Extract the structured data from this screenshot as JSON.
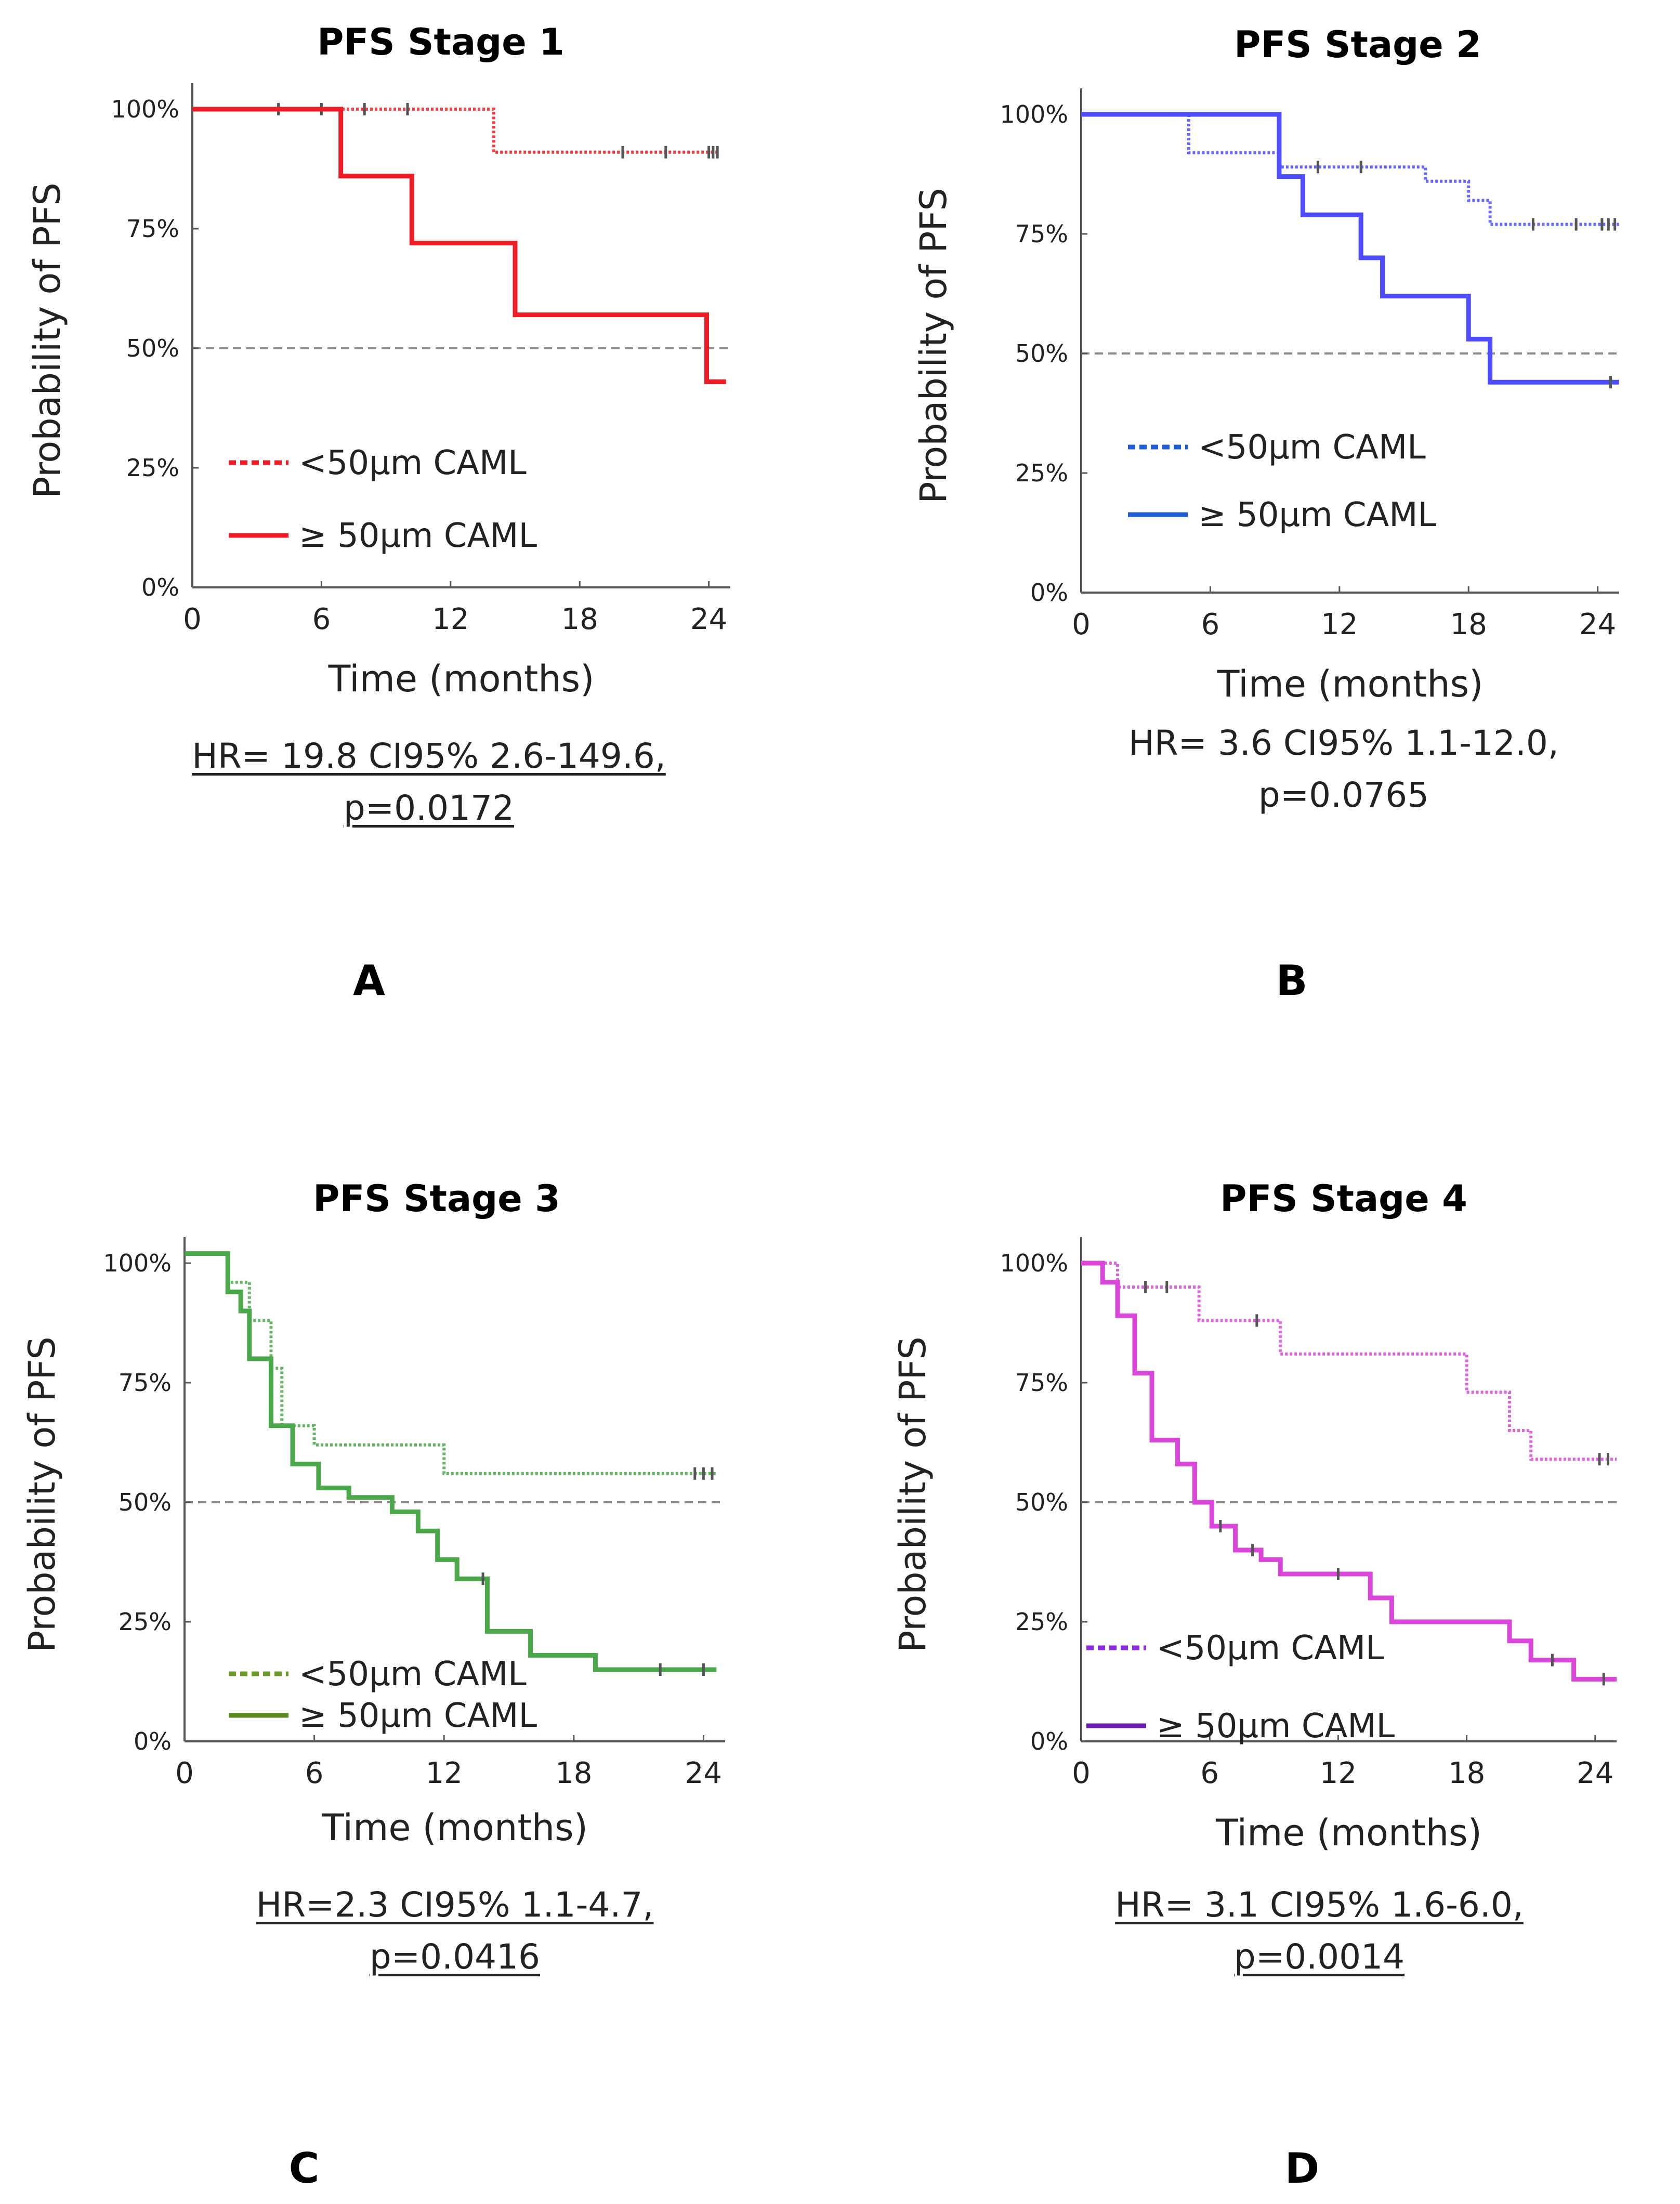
{
  "chart_data": [
    {
      "type": "line",
      "panel": "A",
      "title": "PFS Stage 1",
      "xlabel": "Time (months)",
      "ylabel": "Probability of PFS",
      "xlim": [
        0,
        25
      ],
      "ylim": [
        0,
        100
      ],
      "xticks": [
        "0",
        "6",
        "12",
        "18",
        "24"
      ],
      "yticks": [
        "0%",
        "25%",
        "50%",
        "75%",
        "100%"
      ],
      "median_line": 50,
      "color": "#ee1c25",
      "series": [
        {
          "name": "<50µm CAML",
          "style": "dotted",
          "steps": [
            [
              0,
              100
            ],
            [
              14,
              100
            ],
            [
              14,
              91
            ],
            [
              24.5,
              91
            ]
          ],
          "censors": [
            [
              4,
              100
            ],
            [
              6,
              100
            ],
            [
              8,
              100
            ],
            [
              10,
              100
            ],
            [
              20,
              91
            ],
            [
              22,
              91
            ],
            [
              24,
              91
            ],
            [
              24.2,
              91
            ],
            [
              24.4,
              91
            ]
          ]
        },
        {
          "name": "≥ 50µm CAML",
          "style": "solid",
          "steps": [
            [
              0,
              100
            ],
            [
              6.9,
              100
            ],
            [
              6.9,
              86
            ],
            [
              10.2,
              86
            ],
            [
              10.2,
              72
            ],
            [
              15,
              72
            ],
            [
              15,
              57
            ],
            [
              23.9,
              57
            ],
            [
              23.9,
              43
            ],
            [
              24.8,
              43
            ]
          ],
          "censors": []
        }
      ],
      "legend": [
        "<50µm CAML",
        "≥ 50µm CAML"
      ],
      "stats": [
        "HR= 19.8 CI95% 2.6-149.6,",
        "p=0.0172"
      ]
    },
    {
      "type": "line",
      "panel": "B",
      "title": "PFS Stage 2",
      "xlabel": "Time (months)",
      "ylabel": "Probability of PFS",
      "xlim": [
        0,
        25
      ],
      "ylim": [
        0,
        100
      ],
      "xticks": [
        "0",
        "6",
        "12",
        "18",
        "24"
      ],
      "yticks": [
        "0%",
        "25%",
        "50%",
        "75%",
        "100%"
      ],
      "median_line": 50,
      "color": "#4d4dff",
      "series": [
        {
          "name": "<50µm CAML",
          "style": "dotted",
          "steps": [
            [
              0,
              100
            ],
            [
              5,
              100
            ],
            [
              5,
              92
            ],
            [
              9.2,
              92
            ],
            [
              9.2,
              89
            ],
            [
              16,
              89
            ],
            [
              16,
              86
            ],
            [
              18,
              86
            ],
            [
              18,
              82
            ],
            [
              19,
              82
            ],
            [
              19,
              77
            ],
            [
              25,
              77
            ]
          ],
          "censors": [
            [
              11,
              89
            ],
            [
              13,
              89
            ],
            [
              21,
              77
            ],
            [
              23,
              77
            ],
            [
              24.2,
              77
            ],
            [
              24.5,
              77
            ],
            [
              24.8,
              77
            ]
          ]
        },
        {
          "name": "≥ 50µm CAML",
          "style": "solid",
          "steps": [
            [
              0,
              100
            ],
            [
              9.2,
              100
            ],
            [
              9.2,
              87
            ],
            [
              10.3,
              87
            ],
            [
              10.3,
              79
            ],
            [
              13,
              79
            ],
            [
              13,
              70
            ],
            [
              14,
              70
            ],
            [
              14,
              62
            ],
            [
              18,
              62
            ],
            [
              18,
              53
            ],
            [
              19,
              53
            ],
            [
              19,
              44
            ],
            [
              25,
              44
            ]
          ],
          "censors": [
            [
              24.6,
              44
            ]
          ]
        }
      ],
      "legend": [
        "<50µm CAML",
        "≥ 50µm CAML"
      ],
      "stats": [
        "HR= 3.6 CI95% 1.1-12.0,",
        "p=0.0765"
      ]
    },
    {
      "type": "line",
      "panel": "C",
      "title": "PFS Stage 3",
      "xlabel": "Time (months)",
      "ylabel": "Probability of PFS",
      "xlim": [
        0,
        25
      ],
      "ylim": [
        0,
        100
      ],
      "xticks": [
        "0",
        "6",
        "12",
        "18",
        "24"
      ],
      "yticks": [
        "0%",
        "25%",
        "50%",
        "75%",
        "100%"
      ],
      "median_line": 50,
      "color": "#4aa84a",
      "series": [
        {
          "name": "<50µm CAML",
          "style": "dotted",
          "steps": [
            [
              0,
              102
            ],
            [
              2,
              102
            ],
            [
              2,
              96
            ],
            [
              3,
              96
            ],
            [
              3,
              88
            ],
            [
              4,
              88
            ],
            [
              4,
              78
            ],
            [
              4.5,
              78
            ],
            [
              4.5,
              66
            ],
            [
              6,
              66
            ],
            [
              6,
              62
            ],
            [
              12,
              62
            ],
            [
              12,
              56
            ],
            [
              24.6,
              56
            ]
          ],
          "censors": [
            [
              23.6,
              56
            ],
            [
              24,
              56
            ],
            [
              24.4,
              56
            ]
          ]
        },
        {
          "name": "≥ 50µm CAML",
          "style": "solid",
          "steps": [
            [
              0,
              102
            ],
            [
              2,
              102
            ],
            [
              2,
              94
            ],
            [
              2.6,
              94
            ],
            [
              2.6,
              90
            ],
            [
              3,
              90
            ],
            [
              3,
              80
            ],
            [
              4,
              80
            ],
            [
              4,
              66
            ],
            [
              5,
              66
            ],
            [
              5,
              58
            ],
            [
              6.2,
              58
            ],
            [
              6.2,
              53
            ],
            [
              7.6,
              53
            ],
            [
              7.6,
              51
            ],
            [
              9.6,
              51
            ],
            [
              9.6,
              48
            ],
            [
              10.8,
              48
            ],
            [
              10.8,
              44
            ],
            [
              11.7,
              44
            ],
            [
              11.7,
              38
            ],
            [
              12.6,
              38
            ],
            [
              12.6,
              34
            ],
            [
              14,
              34
            ],
            [
              14,
              23
            ],
            [
              16,
              23
            ],
            [
              16,
              18
            ],
            [
              19,
              18
            ],
            [
              19,
              15
            ],
            [
              24.6,
              15
            ]
          ],
          "censors": [
            [
              13.8,
              34
            ],
            [
              22,
              15
            ],
            [
              24,
              15
            ]
          ]
        }
      ],
      "legend": [
        "<50µm CAML",
        "≥ 50µm CAML"
      ],
      "stats": [
        "HR=2.3 CI95% 1.1-4.7,",
        "p=0.0416"
      ]
    },
    {
      "type": "line",
      "panel": "D",
      "title": "PFS Stage 4",
      "xlabel": "Time (months)",
      "ylabel": "Probability of PFS",
      "xlim": [
        0,
        25
      ],
      "ylim": [
        0,
        100
      ],
      "xticks": [
        "0",
        "6",
        "12",
        "18",
        "24"
      ],
      "yticks": [
        "0%",
        "25%",
        "50%",
        "75%",
        "100%"
      ],
      "median_line": 50,
      "color": "#d946d9",
      "series": [
        {
          "name": "<50µm CAML",
          "style": "dotted",
          "steps": [
            [
              0,
              100
            ],
            [
              1.7,
              100
            ],
            [
              1.7,
              95
            ],
            [
              5.5,
              95
            ],
            [
              5.5,
              88
            ],
            [
              9.3,
              88
            ],
            [
              9.3,
              81
            ],
            [
              18,
              81
            ],
            [
              18,
              73
            ],
            [
              20,
              73
            ],
            [
              20,
              65
            ],
            [
              21,
              65
            ],
            [
              21,
              59
            ],
            [
              25,
              59
            ]
          ],
          "censors": [
            [
              3,
              95
            ],
            [
              4,
              95
            ],
            [
              8.2,
              88
            ],
            [
              24.2,
              59
            ],
            [
              24.6,
              59
            ]
          ]
        },
        {
          "name": "≥ 50µm CAML",
          "style": "solid",
          "steps": [
            [
              0,
              100
            ],
            [
              1,
              100
            ],
            [
              1,
              96
            ],
            [
              1.7,
              96
            ],
            [
              1.7,
              89
            ],
            [
              2.5,
              89
            ],
            [
              2.5,
              77
            ],
            [
              3.3,
              77
            ],
            [
              3.3,
              63
            ],
            [
              4.5,
              63
            ],
            [
              4.5,
              58
            ],
            [
              5.3,
              58
            ],
            [
              5.3,
              50
            ],
            [
              6.1,
              50
            ],
            [
              6.1,
              45
            ],
            [
              7.2,
              45
            ],
            [
              7.2,
              40
            ],
            [
              8.4,
              40
            ],
            [
              8.4,
              38
            ],
            [
              9.3,
              38
            ],
            [
              9.3,
              35
            ],
            [
              13.5,
              35
            ],
            [
              13.5,
              30
            ],
            [
              14.5,
              30
            ],
            [
              14.5,
              25
            ],
            [
              20,
              25
            ],
            [
              20,
              21
            ],
            [
              21,
              21
            ],
            [
              21,
              17
            ],
            [
              23,
              17
            ],
            [
              23,
              13
            ],
            [
              25,
              13
            ]
          ],
          "censors": [
            [
              6.5,
              45
            ],
            [
              8,
              40
            ],
            [
              12,
              35
            ],
            [
              22,
              17
            ],
            [
              24.4,
              13
            ]
          ]
        }
      ],
      "legend": [
        "<50µm CAML",
        "≥ 50µm CAML"
      ],
      "stats": [
        "HR= 3.1 CI95% 1.6-6.0,",
        "p=0.0014"
      ]
    }
  ],
  "colors": {
    "legend_solid_C": "#5a8a1e",
    "legend_solid_D": "#6a1bb0",
    "legend_solid_B": "#1f5fd6",
    "legend_dotted_B": "#1f5fd6",
    "legend_dotted_C": "#6b9a2a",
    "legend_dotted_D": "#8a2be2",
    "median": "#8c8c8c"
  }
}
